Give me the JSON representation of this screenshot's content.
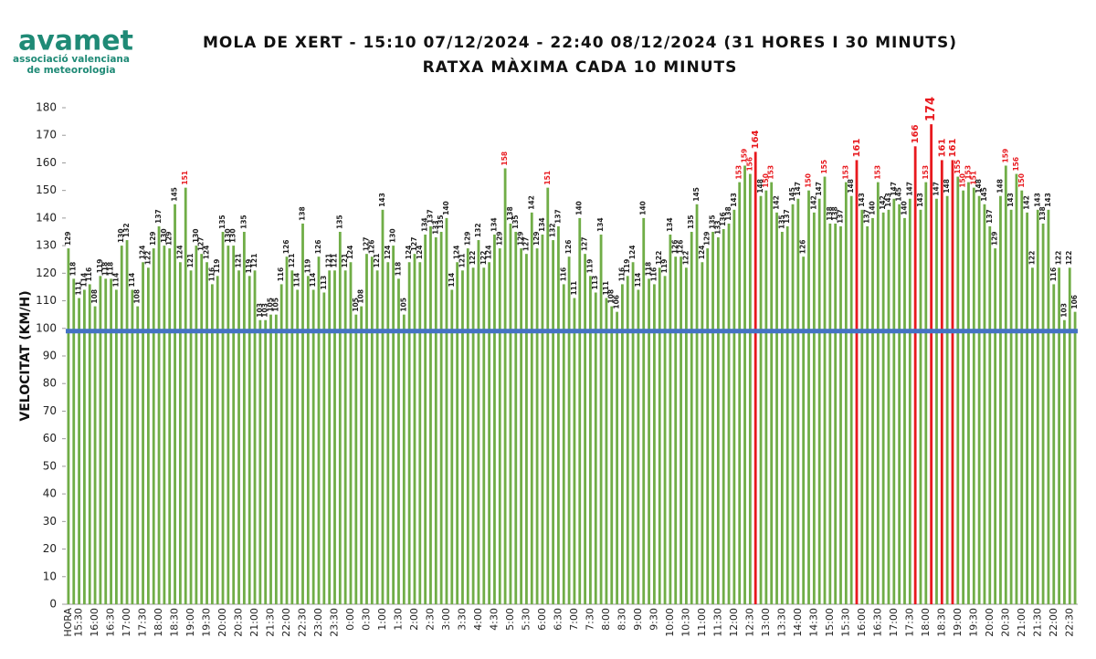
{
  "logo": {
    "name": "avamet",
    "tagline": [
      "associació valenciana",
      "de meteorologia"
    ]
  },
  "chart_data": {
    "type": "bar",
    "title": [
      "MOLA DE XERT - 15:10 07/12/2024 - 22:40 08/12/2024 (31 HORES I 30 MINUTS)",
      "RATXA MÀXIMA CADA 10 MINUTS"
    ],
    "y_label": "VELOCITAT  (KM/H)",
    "color": "#70ad47",
    "highlight_color": "#e8191e",
    "bar_highlight_above": 160,
    "label_highlight_from": 150,
    "reference_line": {
      "value": 99,
      "color": "#4472c4"
    },
    "grid": false,
    "ylim": [
      0,
      180
    ],
    "yticks": [
      0,
      10,
      20,
      30,
      40,
      50,
      60,
      70,
      80,
      90,
      100,
      110,
      120,
      130,
      140,
      150,
      160,
      170,
      180
    ],
    "categories": [
      "HORA",
      null,
      "15:30",
      null,
      null,
      "16:00",
      null,
      null,
      "16:30",
      null,
      null,
      "17:00",
      null,
      null,
      "17:30",
      null,
      null,
      "18:00",
      null,
      null,
      "18:30",
      null,
      null,
      "19:00",
      null,
      null,
      "19:30",
      null,
      null,
      "20:00",
      null,
      null,
      "20:30",
      null,
      null,
      "21:00",
      null,
      null,
      "21:30",
      null,
      null,
      "22:00",
      null,
      null,
      "22:30",
      null,
      null,
      "23:00",
      null,
      null,
      "23:30",
      null,
      null,
      "0:00",
      null,
      null,
      "0:30",
      null,
      null,
      "1:00",
      null,
      null,
      "1:30",
      null,
      null,
      "2:00",
      null,
      null,
      "2:30",
      null,
      null,
      "3:00",
      null,
      null,
      "3:30",
      null,
      null,
      "4:00",
      null,
      null,
      "4:30",
      null,
      null,
      "5:00",
      null,
      null,
      "5:30",
      null,
      null,
      "6:00",
      null,
      null,
      "6:30",
      null,
      null,
      "7:00",
      null,
      null,
      "7:30",
      null,
      null,
      "8:00",
      null,
      null,
      "8:30",
      null,
      null,
      "9:00",
      null,
      null,
      "9:30",
      null,
      null,
      "10:00",
      null,
      null,
      "10:30",
      null,
      null,
      "11:00",
      null,
      null,
      "11:30",
      null,
      null,
      "12:00",
      null,
      null,
      "12:30",
      null,
      null,
      "13:00",
      null,
      null,
      "13:30",
      null,
      null,
      "14:00",
      null,
      null,
      "14:30",
      null,
      null,
      "15:00",
      null,
      null,
      "15:30",
      null,
      null,
      "16:00",
      null,
      null,
      "16:30",
      null,
      null,
      "17:00",
      null,
      null,
      "17:30",
      null,
      null,
      "18:00",
      null,
      null,
      "18:30",
      null,
      null,
      "19:00",
      null,
      null,
      "19:30",
      null,
      null,
      "20:00",
      null,
      null,
      "20:30",
      null,
      null,
      "21:00",
      null,
      null,
      "21:30",
      null,
      null,
      "22:00",
      null,
      null,
      "22:30",
      null
    ],
    "values": [
      129,
      118,
      111,
      114,
      116,
      108,
      119,
      118,
      118,
      114,
      130,
      132,
      114,
      108,
      124,
      122,
      129,
      137,
      130,
      129,
      145,
      124,
      151,
      121,
      130,
      127,
      124,
      116,
      119,
      135,
      130,
      130,
      121,
      135,
      119,
      121,
      103,
      103,
      105,
      105,
      116,
      126,
      121,
      114,
      138,
      119,
      114,
      126,
      113,
      121,
      121,
      135,
      121,
      124,
      105,
      108,
      127,
      126,
      121,
      143,
      124,
      130,
      118,
      105,
      124,
      127,
      124,
      134,
      137,
      133,
      135,
      140,
      114,
      124,
      121,
      129,
      122,
      132,
      122,
      124,
      134,
      129,
      158,
      138,
      135,
      129,
      127,
      142,
      129,
      134,
      151,
      132,
      137,
      116,
      126,
      111,
      140,
      127,
      119,
      113,
      134,
      111,
      108,
      106,
      116,
      119,
      124,
      114,
      140,
      118,
      116,
      122,
      119,
      134,
      126,
      126,
      122,
      135,
      145,
      124,
      129,
      135,
      133,
      136,
      138,
      143,
      153,
      159,
      156,
      164,
      148,
      150,
      153,
      142,
      135,
      137,
      145,
      147,
      126,
      150,
      142,
      147,
      155,
      138,
      138,
      137,
      153,
      148,
      161,
      143,
      137,
      140,
      153,
      142,
      143,
      147,
      145,
      140,
      147,
      166,
      143,
      153,
      174,
      147,
      161,
      148,
      161,
      155,
      150,
      153,
      151,
      148,
      145,
      137,
      129,
      148,
      159,
      143,
      156,
      150,
      142,
      122,
      143,
      138,
      143,
      116,
      122,
      103,
      122,
      106
    ]
  }
}
